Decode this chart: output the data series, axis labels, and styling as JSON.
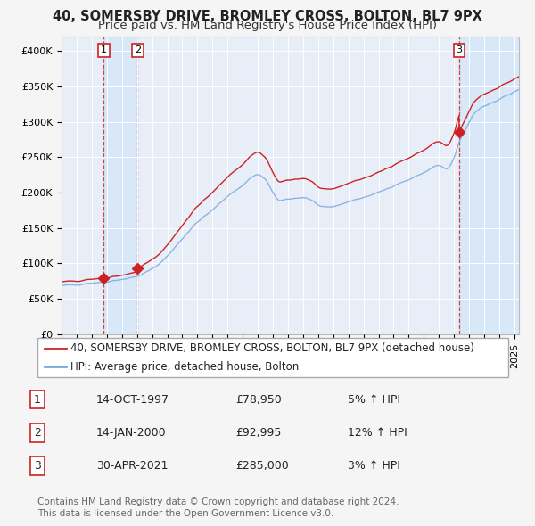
{
  "title1": "40, SOMERSBY DRIVE, BROMLEY CROSS, BOLTON, BL7 9PX",
  "title2": "Price paid vs. HM Land Registry's House Price Index (HPI)",
  "ylim": [
    0,
    420000
  ],
  "xlim_start": 1995.0,
  "xlim_end": 2025.3,
  "yticks": [
    0,
    50000,
    100000,
    150000,
    200000,
    250000,
    300000,
    350000,
    400000
  ],
  "ytick_labels": [
    "£0",
    "£50K",
    "£100K",
    "£150K",
    "£200K",
    "£250K",
    "£300K",
    "£350K",
    "£400K"
  ],
  "sale_dates": [
    1997.79,
    2000.04,
    2021.33
  ],
  "sale_prices": [
    78950,
    92995,
    285000
  ],
  "sale_labels": [
    "1",
    "2",
    "3"
  ],
  "background_color": "#f5f5f5",
  "plot_bg_color": "#e8eef8",
  "grid_color": "#ffffff",
  "hpi_line_color": "#7aaadd",
  "price_line_color": "#cc2222",
  "sale_marker_color": "#cc2222",
  "vline_color": "#cc3333",
  "vspan_color": "#d8e8f8",
  "legend_box1": "40, SOMERSBY DRIVE, BROMLEY CROSS, BOLTON, BL7 9PX (detached house)",
  "legend_box2": "HPI: Average price, detached house, Bolton",
  "table_rows": [
    [
      "1",
      "14-OCT-1997",
      "£78,950",
      "5% ↑ HPI"
    ],
    [
      "2",
      "14-JAN-2000",
      "£92,995",
      "12% ↑ HPI"
    ],
    [
      "3",
      "30-APR-2021",
      "£285,000",
      "3% ↑ HPI"
    ]
  ],
  "footnote": "Contains HM Land Registry data © Crown copyright and database right 2024.\nThis data is licensed under the Open Government Licence v3.0.",
  "title_fontsize": 10.5,
  "subtitle_fontsize": 9.5,
  "tick_fontsize": 8,
  "legend_fontsize": 8.5,
  "table_fontsize": 9,
  "footnote_fontsize": 7.5
}
